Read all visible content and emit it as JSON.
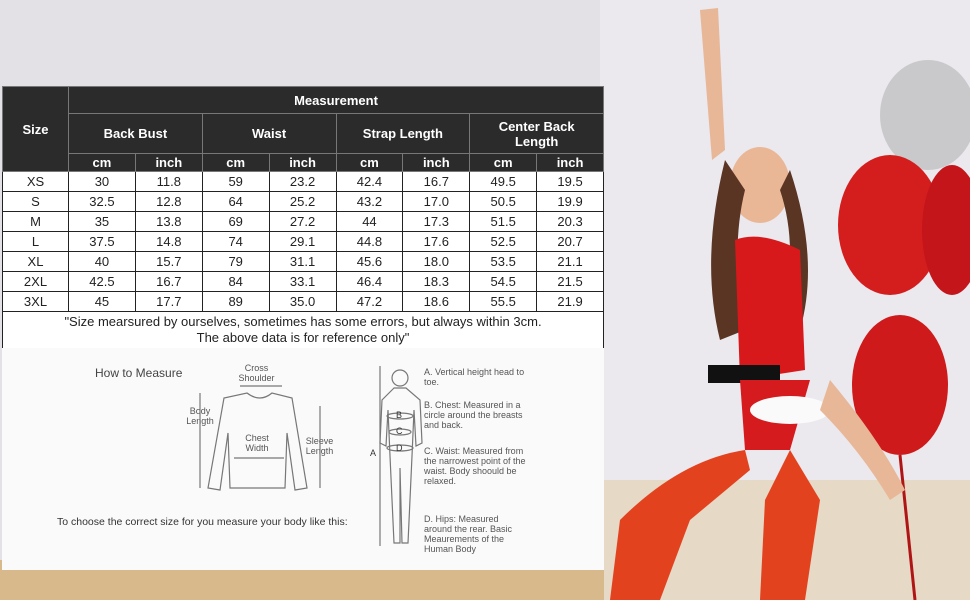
{
  "table": {
    "header": {
      "size": "Size",
      "measurement": "Measurement",
      "groups": [
        "Back Bust",
        "Waist",
        "Strap Length",
        "Center Back Length"
      ],
      "units": [
        "cm",
        "inch"
      ]
    },
    "rows": [
      [
        "XS",
        "30",
        "11.8",
        "59",
        "23.2",
        "42.4",
        "16.7",
        "49.5",
        "19.5"
      ],
      [
        "S",
        "32.5",
        "12.8",
        "64",
        "25.2",
        "43.2",
        "17.0",
        "50.5",
        "19.9"
      ],
      [
        "M",
        "35",
        "13.8",
        "69",
        "27.2",
        "44",
        "17.3",
        "51.5",
        "20.3"
      ],
      [
        "L",
        "37.5",
        "14.8",
        "74",
        "29.1",
        "44.8",
        "17.6",
        "52.5",
        "20.7"
      ],
      [
        "XL",
        "40",
        "15.7",
        "79",
        "31.1",
        "45.6",
        "18.0",
        "53.5",
        "21.1"
      ],
      [
        "2XL",
        "42.5",
        "16.7",
        "84",
        "33.1",
        "46.4",
        "18.3",
        "54.5",
        "21.5"
      ],
      [
        "3XL",
        "45",
        "17.7",
        "89",
        "35.0",
        "47.2",
        "18.6",
        "55.5",
        "21.9"
      ]
    ],
    "note": [
      "\"Size mearsured by ourselves, sometimes has some errors, but always within 3cm.",
      "The above data is for reference only\""
    ]
  },
  "how_to_measure": {
    "title": "How to Measure",
    "garment_labels": {
      "cross_shoulder": "Cross Shoulder",
      "body_length": "Body Length",
      "chest_width": "Chest Width",
      "sleeve_length": "Sleeve Length"
    },
    "body_letters": [
      "A",
      "B",
      "C",
      "D"
    ],
    "instructions": [
      "A. Vertical height head to toe.",
      "B. Chest: Measured in a circle around the breasts and back.",
      "C. Waist: Measured from the narrowest point of the waist. Body shoould be relaxed.",
      "D. Hips: Measured around the rear. Basic Meaurements of the Human Body"
    ],
    "prompt": "To choose the correct size for you measure your body like this:"
  }
}
